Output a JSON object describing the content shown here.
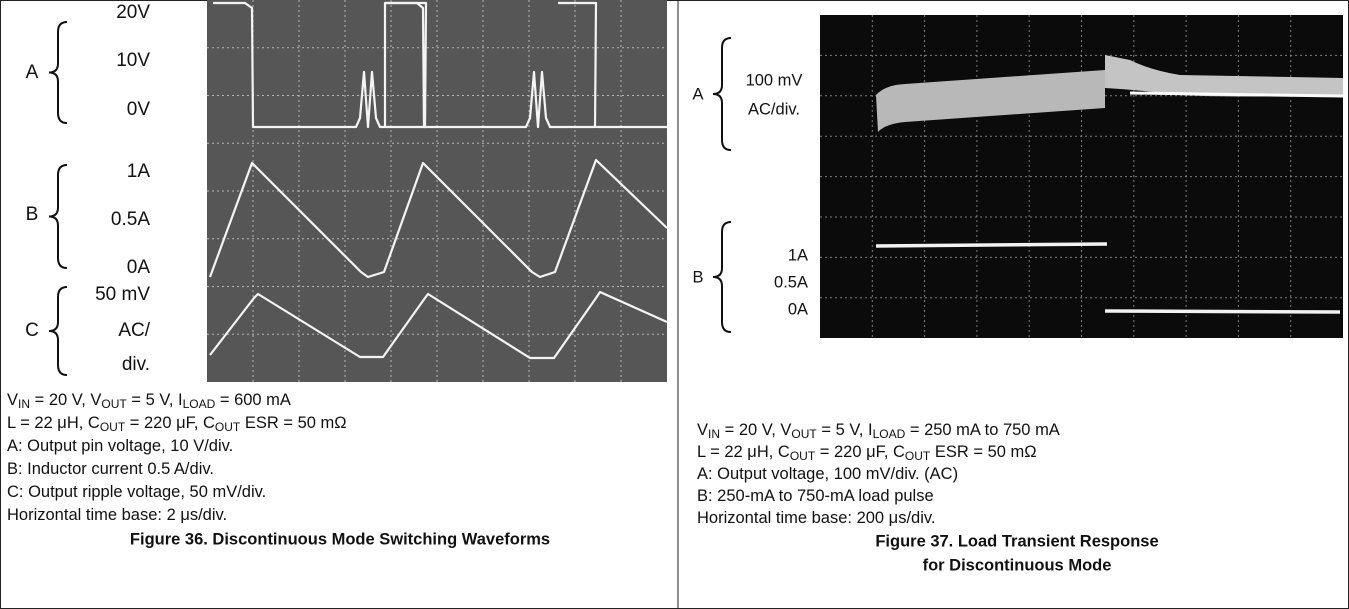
{
  "figure_36": {
    "letters": [
      "A",
      "B",
      "C"
    ],
    "scale_a": [
      "20V",
      "10V",
      "0V"
    ],
    "scale_b": [
      "1A",
      "0.5A",
      "0A"
    ],
    "scale_c": [
      "50 mV",
      "AC/",
      "div."
    ],
    "conditions": [
      [
        {
          "text": "V"
        },
        {
          "sub": "IN"
        },
        {
          "text": " = 20 V, V"
        },
        {
          "sub": "OUT"
        },
        {
          "text": " = 5 V, I"
        },
        {
          "sub": "LOAD"
        },
        {
          "text": " = 600 mA"
        }
      ],
      [
        {
          "text": "L = 22 μH, C"
        },
        {
          "sub": "OUT"
        },
        {
          "text": " = 220 μF, C"
        },
        {
          "sub": "OUT"
        },
        {
          "text": " ESR = 50 mΩ"
        }
      ],
      [
        {
          "text": "A: Output pin voltage, 10 V/div."
        }
      ],
      [
        {
          "text": "B: Inductor current 0.5 A/div."
        }
      ],
      [
        {
          "text": "C: Output ripple voltage, 50 mV/div."
        }
      ],
      [
        {
          "text": "Horizontal time base: 2 μs/div."
        }
      ]
    ],
    "title": "Figure 36. Discontinuous Mode Switching Waveforms"
  },
  "figure_37": {
    "letters": [
      "A",
      "B"
    ],
    "scale_a": [
      "100 mV",
      "AC/div."
    ],
    "scale_b": [
      "1A",
      "0.5A",
      "0A"
    ],
    "conditions": [
      [
        {
          "text": "V"
        },
        {
          "sub": "IN"
        },
        {
          "text": " = 20 V, V"
        },
        {
          "sub": "OUT"
        },
        {
          "text": " = 5 V, I"
        },
        {
          "sub": "LOAD"
        },
        {
          "text": " = 250 mA to 750 mA"
        }
      ],
      [
        {
          "text": "L = 22 μH, C"
        },
        {
          "sub": "OUT"
        },
        {
          "text": " = 220 μF, C"
        },
        {
          "sub": "OUT"
        },
        {
          "text": " ESR = 50 mΩ"
        }
      ],
      [
        {
          "text": "A: Output voltage, 100 mV/div. (AC)"
        }
      ],
      [
        {
          "text": "B: 250-mA to 750-mA load pulse"
        }
      ],
      [
        {
          "text": "Horizontal time base: 200 μs/div."
        }
      ]
    ],
    "title": [
      "Figure 37. Load Transient Response",
      "for Discontinuous Mode"
    ]
  }
}
